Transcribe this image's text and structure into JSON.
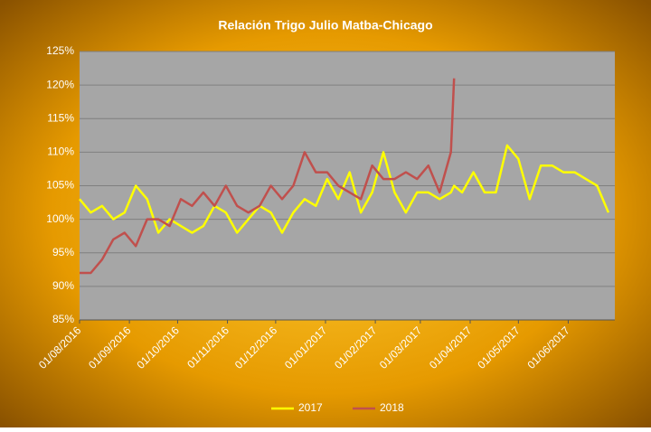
{
  "chart_data": {
    "type": "line",
    "title": "Relación Trigo Julio Matba-Chicago",
    "x": [
      "01/08/2016",
      "08/08/2016",
      "15/08/2016",
      "22/08/2016",
      "29/08/2016",
      "05/09/2016",
      "12/09/2016",
      "19/09/2016",
      "26/09/2016",
      "03/10/2016",
      "10/10/2016",
      "17/10/2016",
      "24/10/2016",
      "31/10/2016",
      "07/11/2016",
      "14/11/2016",
      "21/11/2016",
      "28/11/2016",
      "05/12/2016",
      "12/12/2016",
      "19/12/2016",
      "26/12/2016",
      "02/01/2017",
      "09/01/2017",
      "16/01/2017",
      "23/01/2017",
      "30/01/2017",
      "06/02/2017",
      "13/02/2017",
      "20/02/2017",
      "27/02/2017",
      "06/03/2017",
      "13/03/2017",
      "20/03/2017",
      "22/03/2017",
      "27/03/2017",
      "03/04/2017",
      "10/04/2017",
      "17/04/2017",
      "24/04/2017",
      "01/05/2017",
      "08/05/2017",
      "15/05/2017",
      "22/05/2017",
      "29/05/2017",
      "05/06/2017",
      "12/06/2017",
      "19/06/2017",
      "26/06/2017"
    ],
    "series": [
      {
        "name": "2017",
        "color": "#ffff00",
        "values": [
          103,
          101,
          102,
          100,
          101,
          105,
          103,
          98,
          100,
          99,
          98,
          99,
          102,
          101,
          98,
          100,
          102,
          101,
          98,
          101,
          103,
          102,
          106,
          103,
          107,
          101,
          104,
          110,
          104,
          101,
          104,
          104,
          103,
          104,
          105,
          104,
          107,
          104,
          104,
          111,
          109,
          103,
          108,
          108,
          107,
          107,
          106,
          105,
          101
        ]
      },
      {
        "name": "2018",
        "color": "#c0504d",
        "values": [
          92,
          92,
          94,
          97,
          98,
          96,
          100,
          100,
          99,
          103,
          102,
          104,
          102,
          105,
          102,
          101,
          102,
          105,
          103,
          105,
          110,
          107,
          107,
          105,
          104,
          103,
          108,
          106,
          106,
          107,
          106,
          108,
          104,
          110,
          121,
          null,
          null,
          null,
          null,
          null,
          null,
          null,
          null,
          null,
          null,
          null,
          null,
          null,
          null
        ]
      }
    ],
    "xlim": [
      "01/08/2016",
      "30/06/2017"
    ],
    "xticks": [
      "01/08/2016",
      "01/09/2016",
      "01/10/2016",
      "01/11/2016",
      "01/12/2016",
      "01/01/2017",
      "01/02/2017",
      "01/03/2017",
      "01/04/2017",
      "01/05/2017",
      "01/06/2017"
    ],
    "ylim": [
      85,
      125
    ],
    "yticks": [
      {
        "value": 85,
        "label": "85%"
      },
      {
        "value": 90,
        "label": "90%"
      },
      {
        "value": 95,
        "label": "95%"
      },
      {
        "value": 100,
        "label": "100%"
      },
      {
        "value": 105,
        "label": "105%"
      },
      {
        "value": 110,
        "label": "110%"
      },
      {
        "value": 115,
        "label": "115%"
      },
      {
        "value": 120,
        "label": "120%"
      },
      {
        "value": 125,
        "label": "125%"
      }
    ],
    "grid": true,
    "legend": "bottom"
  }
}
